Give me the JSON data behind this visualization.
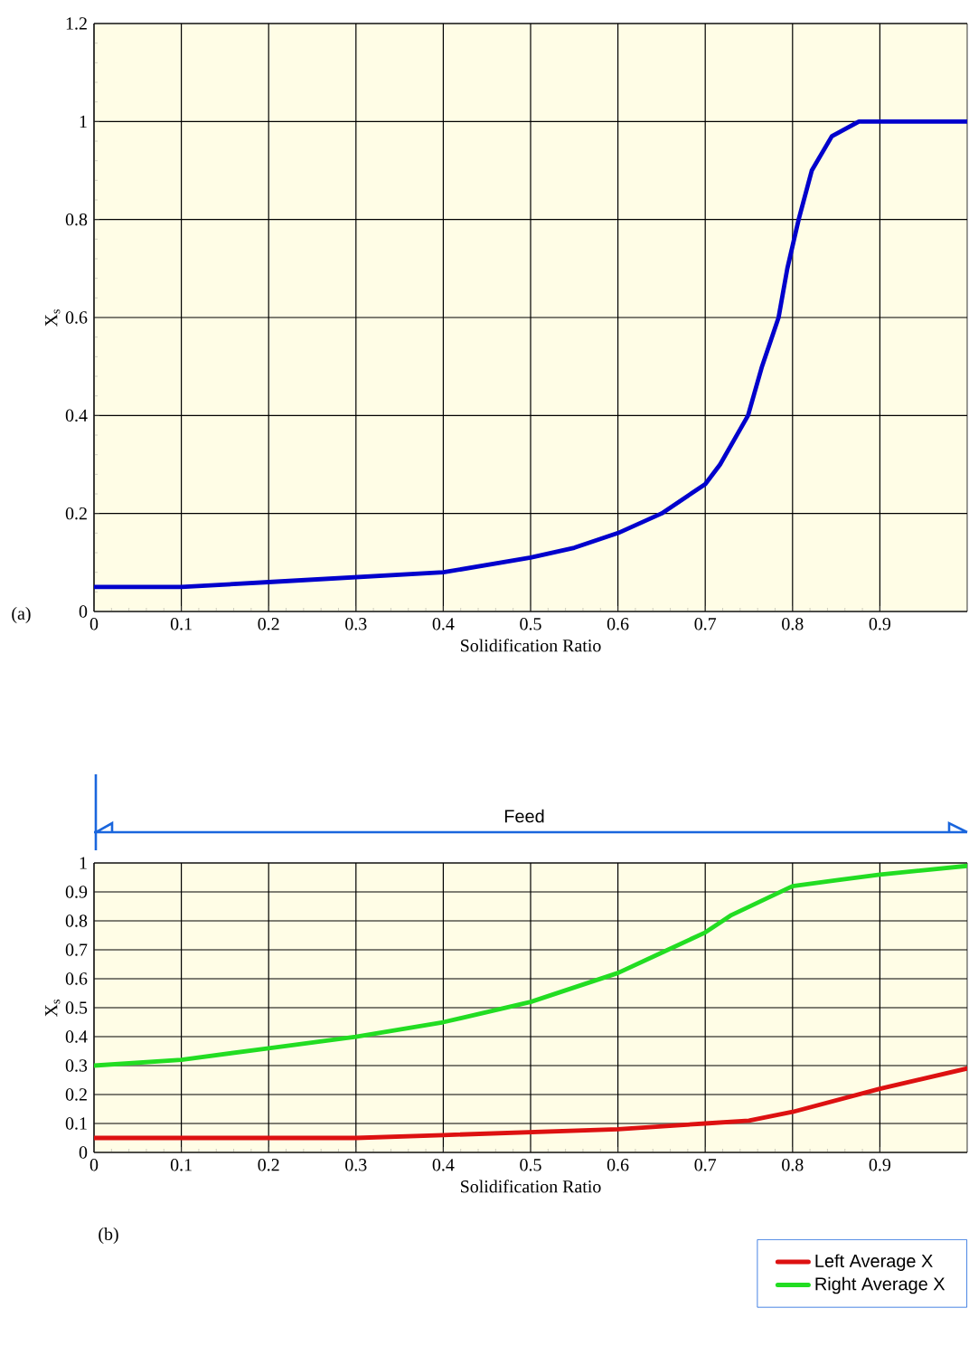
{
  "chart_data": [
    {
      "type": "line",
      "xlabel": "Solidification Ratio",
      "ylabel": "X$_{s}$",
      "annotations": [
        "(a)"
      ],
      "xlim": [
        0,
        1
      ],
      "ylim": [
        0,
        1.2
      ],
      "xticks": [
        0,
        0.1,
        0.2,
        0.3,
        0.4,
        0.5,
        0.6,
        0.7,
        0.8,
        0.9
      ],
      "yticks": [
        0,
        0.2,
        0.4,
        0.6,
        0.8,
        1,
        1.2
      ],
      "grid": true,
      "series": [
        {
          "color": "#0000cc",
          "x": [
            0,
            0.1,
            0.2,
            0.3,
            0.4,
            0.5,
            0.55,
            0.6,
            0.65,
            0.7,
            0.717,
            0.749,
            0.765,
            0.784,
            0.794,
            0.807,
            0.822,
            0.845,
            0.876,
            0.9,
            1.0
          ],
          "values": [
            0.05,
            0.05,
            0.06,
            0.07,
            0.08,
            0.11,
            0.13,
            0.16,
            0.2,
            0.26,
            0.3,
            0.4,
            0.5,
            0.6,
            0.7,
            0.8,
            0.9,
            0.97,
            1.0,
            1.0,
            1.0
          ]
        }
      ]
    },
    {
      "type": "line",
      "xlabel": "Solidification Ratio",
      "ylabel": "X$_{s}$",
      "annotations": [
        "Feed",
        "(b)"
      ],
      "xlim": [
        0,
        1
      ],
      "ylim": [
        0,
        1
      ],
      "xticks": [
        0,
        0.1,
        0.2,
        0.3,
        0.4,
        0.5,
        0.6,
        0.7,
        0.8,
        0.9
      ],
      "yticks": [
        0,
        0.1,
        0.2,
        0.3,
        0.4,
        0.5,
        0.6,
        0.7,
        0.8,
        0.9,
        1
      ],
      "grid": true,
      "legend": "bottom right",
      "series": [
        {
          "name": "Left Average X",
          "color": "#dd1111",
          "x": [
            0,
            0.2,
            0.3,
            0.4,
            0.5,
            0.6,
            0.7,
            0.75,
            0.8,
            0.9,
            1.0
          ],
          "values": [
            0.05,
            0.05,
            0.05,
            0.06,
            0.07,
            0.08,
            0.1,
            0.11,
            0.14,
            0.22,
            0.29
          ]
        },
        {
          "name": "Right Average X",
          "color": "#22dd22",
          "x": [
            0,
            0.1,
            0.2,
            0.3,
            0.4,
            0.5,
            0.6,
            0.65,
            0.7,
            0.73,
            0.8,
            0.85,
            0.9,
            1.0
          ],
          "values": [
            0.3,
            0.32,
            0.36,
            0.4,
            0.45,
            0.52,
            0.62,
            0.69,
            0.76,
            0.82,
            0.92,
            0.94,
            0.96,
            0.99
          ]
        }
      ]
    }
  ]
}
